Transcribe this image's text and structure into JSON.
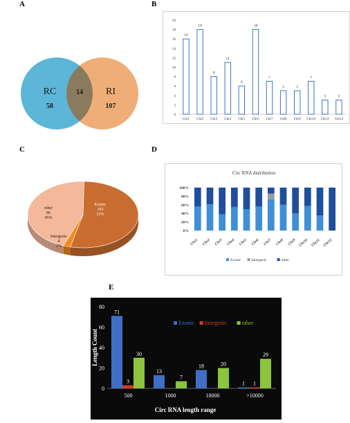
{
  "panels": {
    "a": "A",
    "b": "B",
    "c": "C",
    "d": "D",
    "e": "E"
  },
  "chart_data": [
    {
      "panel": "A",
      "type": "venn",
      "sets": [
        {
          "label": "RC",
          "only": 58,
          "color": "#5bb6d8"
        },
        {
          "label": "RI",
          "only": 107,
          "color": "#eea76b"
        }
      ],
      "intersection": 14
    },
    {
      "panel": "B",
      "type": "bar",
      "categories": [
        "Chr1",
        "Chr2",
        "Chr3",
        "Chr4",
        "Chr5",
        "Chr6",
        "Chr7",
        "Chr8",
        "Chr9",
        "Chr10",
        "Chr11",
        "Chr12"
      ],
      "values": [
        16,
        18,
        8,
        11,
        6,
        18,
        7,
        5,
        5,
        7,
        3,
        3
      ],
      "ylim": [
        0,
        20
      ],
      "yticks": [
        0,
        2,
        4,
        6,
        8,
        10,
        12,
        14,
        16,
        18,
        20
      ],
      "bar_color": "#3b73c4"
    },
    {
      "panel": "C",
      "type": "pie",
      "slices": [
        {
          "label": "Exonic",
          "count": "103",
          "percent": "53%",
          "value": 103,
          "color": "#c86d2f"
        },
        {
          "label": "Intergenic",
          "count": "4",
          "percent": "2%",
          "value": 4,
          "color": "#f28a1e"
        },
        {
          "label": "other",
          "count": "86",
          "percent": "45%",
          "value": 86,
          "color": "#f4b89a"
        }
      ]
    },
    {
      "panel": "D",
      "type": "stacked-bar",
      "title": "Circ RNA distribution",
      "categories": [
        "Chr1",
        "Chr2",
        "Chr3",
        "Chr4",
        "Chr5",
        "Chr6",
        "Chr7",
        "Chr8",
        "Chr9",
        "Chr10",
        "Chr11",
        "Chr12"
      ],
      "ytick_labels": [
        "0%",
        "20%",
        "40%",
        "60%",
        "80%",
        "100%"
      ],
      "series": [
        {
          "name": "Exonic",
          "color": "#3e8fd6",
          "values": [
            56,
            61,
            38,
            55,
            50,
            56,
            73,
            60,
            40,
            57,
            35,
            0
          ]
        },
        {
          "name": "Intergenic",
          "color": "#9b9b9b",
          "values": [
            0,
            0,
            0,
            0,
            0,
            0,
            13,
            0,
            0,
            0,
            0,
            0
          ]
        },
        {
          "name": "other",
          "color": "#1f4e9c",
          "values": [
            44,
            39,
            62,
            45,
            50,
            44,
            14,
            40,
            60,
            43,
            65,
            100
          ]
        }
      ]
    },
    {
      "panel": "E",
      "type": "bar",
      "categories": [
        "500",
        "1000",
        "10000",
        ">10000"
      ],
      "xlabel": "Circ RNA length range",
      "ylabel": "Length Count",
      "ylim": [
        0,
        80
      ],
      "yticks": [
        0,
        20,
        40,
        60,
        80
      ],
      "series": [
        {
          "name": "Exonic",
          "color": "#3f6fc4",
          "values": [
            71,
            13,
            18,
            1
          ]
        },
        {
          "name": "Intergenic",
          "color": "#d63a2a",
          "values": [
            3,
            0,
            0,
            1
          ]
        },
        {
          "name": "other",
          "color": "#8cc43c",
          "values": [
            30,
            7,
            20,
            29
          ]
        }
      ],
      "data_labels": [
        [
          "71",
          "3",
          "30"
        ],
        [
          "13",
          "",
          "7"
        ],
        [
          "18",
          "",
          "20"
        ],
        [
          "1",
          "1",
          "29"
        ]
      ]
    }
  ]
}
